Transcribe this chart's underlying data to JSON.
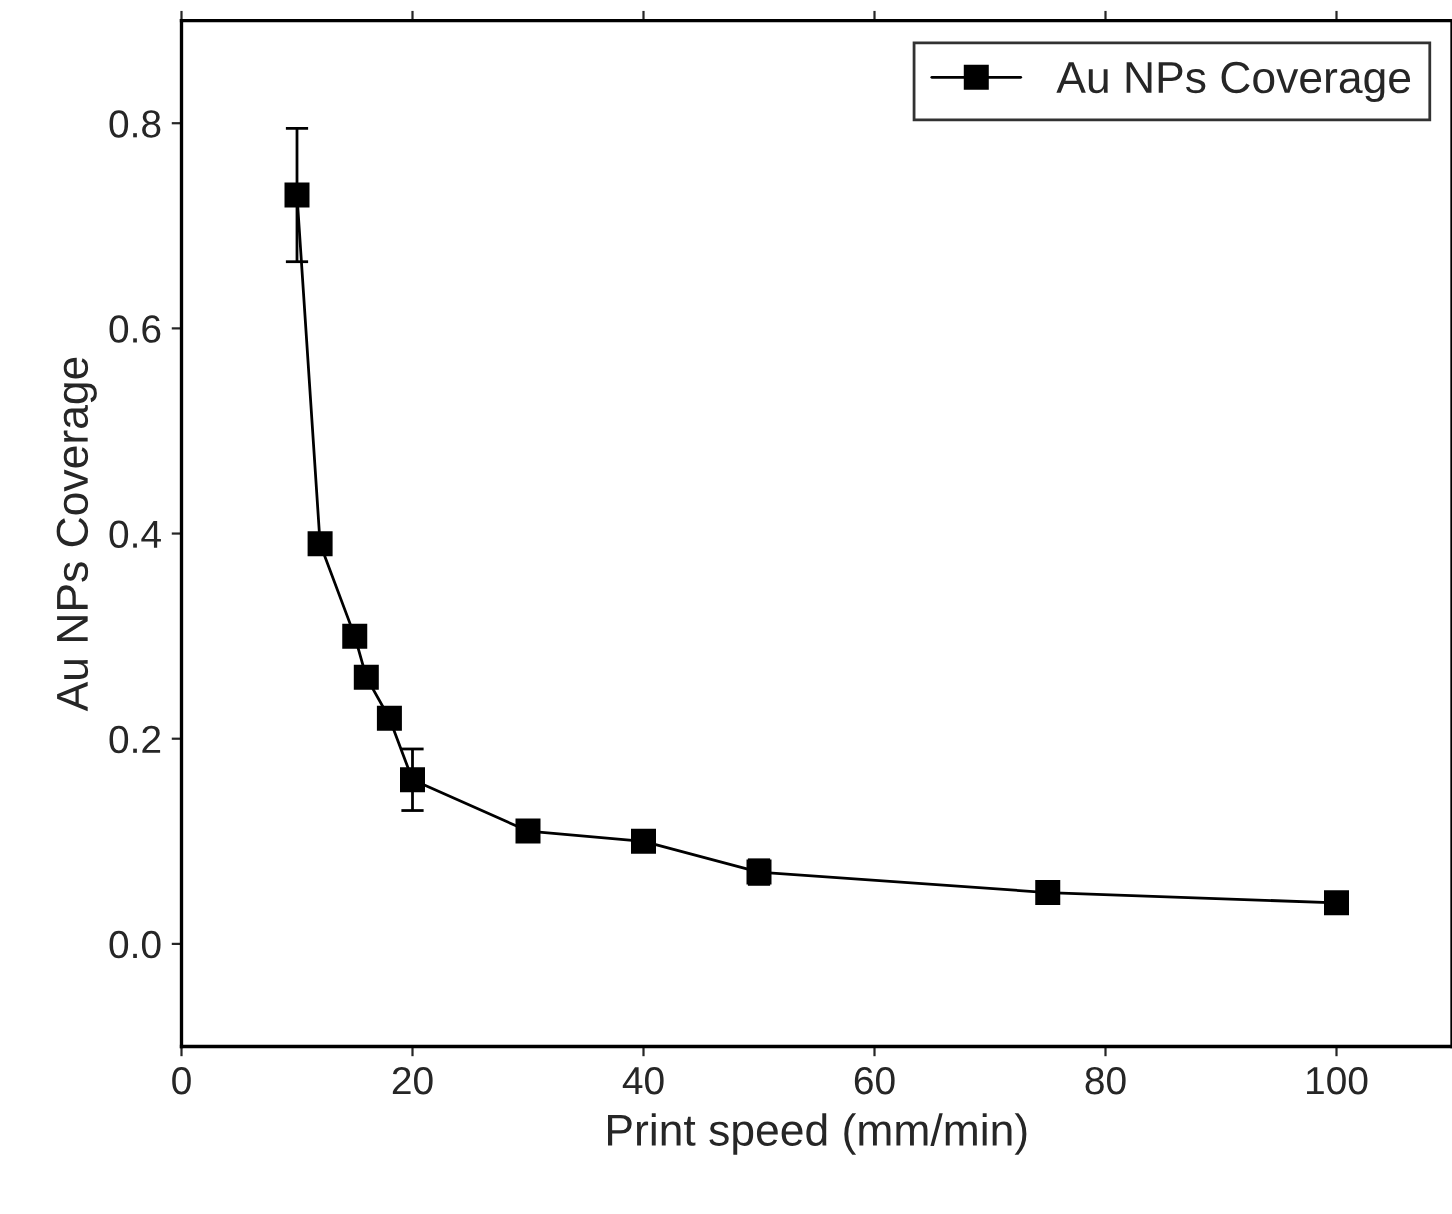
{
  "chart_data": {
    "type": "line",
    "xlabel": "Print speed (mm/min)",
    "ylabel": "Au NPs Coverage",
    "x": [
      10,
      12,
      15,
      16,
      18,
      20,
      30,
      40,
      50,
      75,
      100
    ],
    "series": [
      {
        "name": "Au NPs Coverage",
        "color": "#000000",
        "values": [
          0.73,
          0.39,
          0.3,
          0.26,
          0.22,
          0.16,
          0.11,
          0.1,
          0.07,
          0.05,
          0.04
        ],
        "errors": [
          0.065,
          null,
          null,
          null,
          null,
          0.03,
          null,
          null,
          0.012,
          null,
          null
        ]
      }
    ],
    "xlim": [
      0,
      110
    ],
    "ylim": [
      -0.1,
      0.9
    ],
    "xticks": [
      0,
      20,
      40,
      60,
      80,
      100
    ],
    "yticks": [
      {
        "value": 0,
        "label": "0.0"
      },
      {
        "value": 0.2,
        "label": "0.2"
      },
      {
        "value": 0.4,
        "label": "0.4"
      },
      {
        "value": 0.6,
        "label": "0.6"
      },
      {
        "value": 0.8,
        "label": "0.8"
      }
    ],
    "marker": "square",
    "line_style": "solid",
    "legend": "top right",
    "grid": false
  }
}
